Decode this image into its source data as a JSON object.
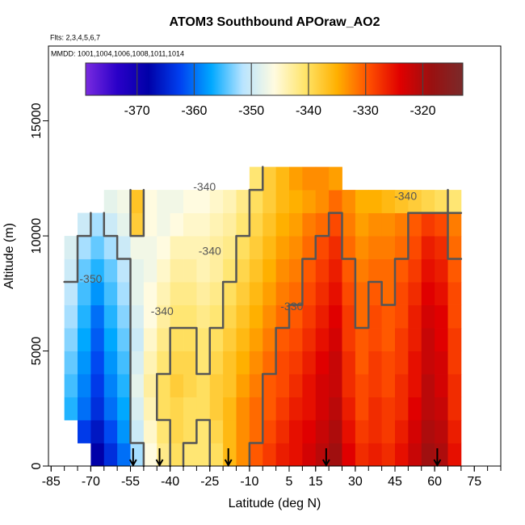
{
  "chart_data": {
    "type": "heatmap",
    "title": "ATOM3 Southbound APOraw_AO2",
    "subtitle": "Flts: 2,3,4,5,6,7",
    "annotation": "MMDD: 1001,1004,1006,1008,1011,1014",
    "x_label": "Latitude (deg N)",
    "y_label": "Altitude (m)",
    "xlim": [
      -86,
      85
    ],
    "ylim": [
      0,
      18250
    ],
    "xticks": [
      -85,
      -70,
      -55,
      -40,
      -25,
      -10,
      5,
      15,
      30,
      45,
      60,
      75
    ],
    "xminorticks": [
      -85,
      -80,
      -75,
      -70,
      -65,
      -60,
      -55,
      -50,
      -45,
      -40,
      -35,
      -30,
      -25,
      -20,
      -15,
      -10,
      -5,
      0,
      5,
      10,
      15,
      20,
      25,
      30,
      35,
      40,
      45,
      50,
      55,
      60,
      65,
      70,
      75,
      80,
      85
    ],
    "yticks": [
      0,
      5000,
      10000,
      15000
    ],
    "clim": [
      -379,
      -313
    ],
    "cticks": [
      -370,
      -360,
      -350,
      -340,
      -330,
      -320
    ],
    "colors": [
      "#7a2be0",
      "#2a00c8",
      "#0000a8",
      "#0040f0",
      "#00a8ff",
      "#b8e4ff",
      "#fffbe0",
      "#ffe468",
      "#ffb000",
      "#ff5000",
      "#e00000",
      "#9a1010",
      "#7a2a2a"
    ],
    "contour_levels": [
      -350,
      -340,
      -330
    ],
    "contour_color": "#555555",
    "contour_labels": [
      {
        "level": -340,
        "x": -27,
        "y": 12100
      },
      {
        "level": -340,
        "x": 49,
        "y": 11700
      },
      {
        "level": -340,
        "x": -25,
        "y": 9300
      },
      {
        "level": -350,
        "x": -70,
        "y": 8100
      },
      {
        "level": -340,
        "x": -43,
        "y": 6700
      },
      {
        "level": -330,
        "x": 6,
        "y": 6900
      }
    ],
    "arrows": [
      -54,
      -44,
      -18,
      19,
      61
    ],
    "x_edges": [
      -80,
      -75,
      -70,
      -65,
      -60,
      -55,
      -50,
      -45,
      -40,
      -35,
      -30,
      -25,
      -20,
      -15,
      -10,
      -5,
      0,
      5,
      10,
      15,
      20,
      25,
      30,
      35,
      40,
      45,
      50,
      55,
      60,
      65,
      70
    ],
    "y_edges": [
      0,
      1000,
      2000,
      3000,
      4000,
      5000,
      6000,
      7000,
      8000,
      9000,
      10000,
      11000,
      12000,
      13000
    ],
    "z": [
      [
        null,
        null,
        -368,
        -364,
        -360,
        -352,
        -346,
        -342,
        -340,
        -341,
        -341,
        -340,
        -336,
        -333,
        -330,
        -328,
        -326,
        -325,
        -323,
        -321,
        -319,
        -324,
        -327,
        -326,
        -327,
        -325,
        -322,
        -319,
        -320,
        -325
      ],
      [
        null,
        -363,
        -366,
        -362,
        -358,
        -350,
        -345,
        -341,
        -339,
        -340,
        -341,
        -339,
        -336,
        -333,
        -331,
        -329,
        -327,
        -325,
        -324,
        -322,
        -320,
        -325,
        -328,
        -327,
        -328,
        -326,
        -323,
        -320,
        -321,
        -326
      ],
      [
        -356,
        -360,
        -364,
        -360,
        -357,
        -349,
        -344,
        -340,
        -339,
        -340,
        -340,
        -338,
        -336,
        -333,
        -331,
        -330,
        -328,
        -326,
        -325,
        -323,
        -321,
        -326,
        -329,
        -327,
        -328,
        -327,
        -324,
        -321,
        -322,
        -327
      ],
      [
        -355,
        -359,
        -363,
        -359,
        -356,
        -348,
        -343,
        -340,
        -338,
        -339,
        -340,
        -338,
        -337,
        -334,
        -332,
        -330,
        -329,
        -327,
        -325,
        -323,
        -322,
        -327,
        -329,
        -328,
        -329,
        -327,
        -325,
        -321,
        -323,
        -327
      ],
      [
        -354,
        -358,
        -362,
        -358,
        -355,
        -349,
        -344,
        -341,
        -339,
        -339,
        -341,
        -339,
        -337,
        -335,
        -333,
        -331,
        -329,
        -328,
        -326,
        -324,
        -322,
        -327,
        -330,
        -328,
        -329,
        -328,
        -325,
        -322,
        -323,
        -328
      ],
      [
        -353,
        -357,
        -361,
        -357,
        -354,
        -350,
        -345,
        -342,
        -340,
        -340,
        -341,
        -340,
        -338,
        -336,
        -334,
        -332,
        -330,
        -329,
        -327,
        -325,
        -323,
        -328,
        -330,
        -329,
        -330,
        -328,
        -326,
        -322,
        -324,
        -328
      ],
      [
        -352,
        -356,
        -360,
        -356,
        -353,
        -349,
        -346,
        -343,
        -341,
        -341,
        -342,
        -341,
        -339,
        -337,
        -335,
        -333,
        -331,
        -330,
        -328,
        -326,
        -324,
        -328,
        -331,
        -329,
        -330,
        -329,
        -326,
        -323,
        -324,
        -329
      ],
      [
        -351,
        -355,
        -358,
        -355,
        -352,
        -348,
        -346,
        -344,
        -342,
        -342,
        -343,
        -342,
        -340,
        -338,
        -336,
        -334,
        -332,
        -331,
        -329,
        -327,
        -325,
        -329,
        -331,
        -330,
        -331,
        -329,
        -327,
        -324,
        -325,
        -329
      ],
      [
        -350,
        -354,
        -356,
        -354,
        -351,
        -348,
        -347,
        -345,
        -343,
        -343,
        -344,
        -343,
        -341,
        -339,
        -337,
        -335,
        -333,
        -332,
        -330,
        -328,
        -326,
        -330,
        -332,
        -331,
        -331,
        -330,
        -328,
        -325,
        -326,
        -330
      ],
      [
        -349,
        -352,
        -354,
        -352,
        -350,
        -347,
        -347,
        -346,
        -344,
        -344,
        -344,
        -343,
        -342,
        -340,
        -338,
        -336,
        -334,
        -333,
        -331,
        -329,
        -327,
        -331,
        -333,
        -332,
        -332,
        -331,
        -329,
        -326,
        -327,
        -331
      ],
      [
        null,
        -350,
        -352,
        -350,
        -348,
        -338,
        -346,
        -347,
        -346,
        -345,
        -345,
        -344,
        -343,
        -341,
        -339,
        -337,
        -335,
        -334,
        -332,
        -331,
        -329,
        -332,
        -334,
        -333,
        -333,
        -332,
        -330,
        -328,
        -329,
        -332
      ],
      [
        null,
        null,
        null,
        -348,
        -347,
        -337,
        -346,
        -347,
        -347,
        -346,
        -346,
        -345,
        -344,
        -342,
        -340,
        -338,
        -336,
        -335,
        -334,
        -333,
        -331,
        -333,
        -335,
        -335,
        -336,
        -337,
        -338,
        -339,
        -340,
        -341
      ],
      [
        null,
        null,
        null,
        null,
        null,
        null,
        null,
        null,
        null,
        null,
        null,
        null,
        null,
        null,
        -341,
        -338,
        -336,
        -334,
        -333,
        -333,
        -334,
        null,
        null,
        null,
        null,
        null,
        null,
        null,
        null,
        null
      ]
    ]
  }
}
